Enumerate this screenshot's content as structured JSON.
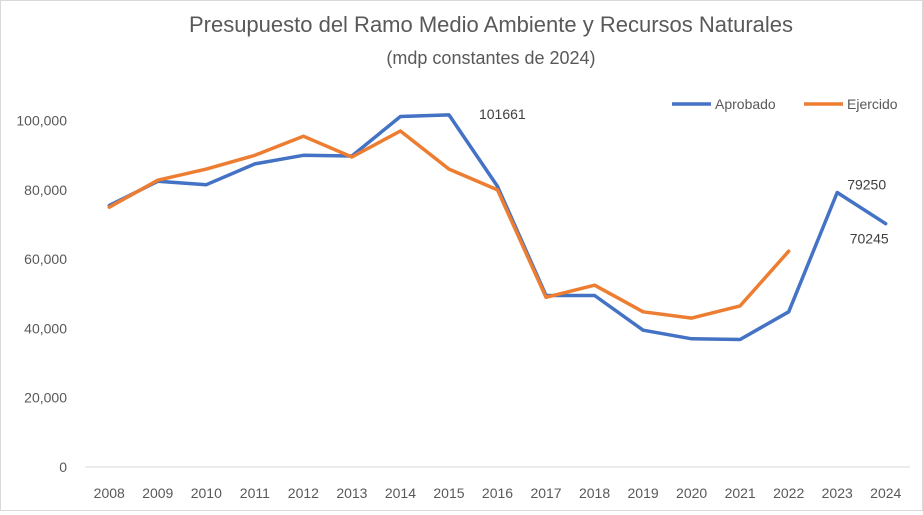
{
  "chart_data": {
    "type": "line",
    "title": "Presupuesto del Ramo Medio Ambiente y Recursos Naturales",
    "subtitle": "(mdp constantes de 2024)",
    "xlabel": "",
    "ylabel": "",
    "ylim": [
      0,
      110000
    ],
    "y_ticks": [
      0,
      20000,
      40000,
      60000,
      80000,
      100000
    ],
    "y_tick_labels": [
      "0",
      "20,000",
      "40,000",
      "60,000",
      "80,000",
      "100,000"
    ],
    "grid": false,
    "legend_position": "top-right",
    "categories": [
      "2008",
      "2009",
      "2010",
      "2011",
      "2012",
      "2013",
      "2014",
      "2015",
      "2016",
      "2017",
      "2018",
      "2019",
      "2020",
      "2021",
      "2022",
      "2023",
      "2024"
    ],
    "series": [
      {
        "name": "Aprobado",
        "color": "#4472c4",
        "values": [
          75500,
          82500,
          81500,
          87500,
          90000,
          89800,
          101200,
          101661,
          81000,
          49500,
          49500,
          39500,
          37000,
          36800,
          44800,
          79250,
          70245
        ]
      },
      {
        "name": "Ejercido",
        "color": "#ed7d31",
        "values": [
          75000,
          82800,
          86000,
          90000,
          95500,
          89500,
          97000,
          86000,
          80000,
          49000,
          52500,
          44800,
          43000,
          46500,
          62300,
          null,
          null
        ]
      }
    ],
    "data_labels": [
      {
        "series": "Aprobado",
        "category": "2015",
        "text": "101661"
      },
      {
        "series": "Aprobado",
        "category": "2023",
        "text": "79250"
      },
      {
        "series": "Aprobado",
        "category": "2024",
        "text": "70245"
      }
    ]
  }
}
